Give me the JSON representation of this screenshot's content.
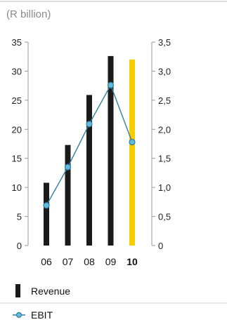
{
  "chart_data": {
    "type": "bar",
    "unit_label": "(R billion)",
    "categories": [
      "06",
      "07",
      "08",
      "09",
      "10"
    ],
    "highlight_category": "10",
    "series": [
      {
        "name": "Revenue",
        "kind": "bar",
        "axis": "left",
        "values": [
          10.8,
          17.3,
          25.9,
          32.6,
          32.0
        ]
      },
      {
        "name": "EBIT",
        "kind": "line",
        "axis": "right",
        "values": [
          0.69,
          1.35,
          2.09,
          2.76,
          1.78
        ]
      }
    ],
    "y_left": {
      "min": 0,
      "max": 35,
      "ticks": [
        "0",
        "5",
        "10",
        "15",
        "20",
        "25",
        "30",
        "35"
      ]
    },
    "y_right": {
      "min": 0,
      "max": 3.5,
      "ticks": [
        "0",
        "0,5",
        "1,0",
        "1,5",
        "2,0",
        "2,5",
        "3,0",
        "3,5"
      ]
    },
    "grid": false,
    "legend_position": "bottom-left",
    "colors": {
      "bar": "#1a1a1a",
      "bar_highlight": "#f7cc00",
      "line": "#2f7fa2",
      "marker": "#62b9dd",
      "axis": "#999999",
      "unit_text": "#8a8a8a",
      "divider": "#d9d0c8"
    }
  }
}
